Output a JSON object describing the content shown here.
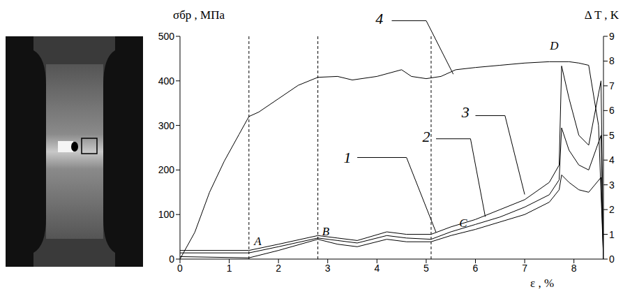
{
  "chart_data": {
    "type": "line",
    "x_label": "ε , %",
    "y_label": "σбр , МПа",
    "y2_label": "Δ T , K",
    "xlim": [
      0,
      8.6
    ],
    "xticks": [
      0,
      1,
      2,
      3,
      4,
      5,
      6,
      7,
      8
    ],
    "ylim": [
      0,
      500
    ],
    "yticks": [
      0,
      100,
      200,
      300,
      400,
      500
    ],
    "y2lim": [
      0,
      9
    ],
    "y2ticks": [
      0,
      1,
      2,
      3,
      4,
      5,
      6,
      7,
      8,
      9
    ],
    "vertical_lines": [
      1.4,
      2.8,
      5.1
    ],
    "series": [
      {
        "name": "4",
        "color": "#000000",
        "axis": "y",
        "x": [
          0,
          0.3,
          0.6,
          0.9,
          1.2,
          1.4,
          1.6,
          2.0,
          2.4,
          2.8,
          3.2,
          3.5,
          4.0,
          4.5,
          4.7,
          5.0,
          5.3,
          5.6,
          6.0,
          6.5,
          7.0,
          7.5,
          7.9,
          8.1,
          8.3,
          8.5,
          8.6
        ],
        "values": [
          0,
          60,
          150,
          220,
          280,
          320,
          330,
          360,
          390,
          408,
          410,
          402,
          410,
          425,
          410,
          405,
          410,
          425,
          430,
          435,
          440,
          443,
          443,
          440,
          435,
          300,
          0
        ]
      },
      {
        "name": "3",
        "color": "#000000",
        "axis": "y2",
        "x": [
          0,
          1.4,
          2.0,
          2.8,
          3.2,
          3.6,
          4.2,
          4.6,
          5.1,
          5.5,
          6.0,
          6.5,
          7.0,
          7.5,
          7.7,
          7.75,
          7.9,
          8.1,
          8.3,
          8.55,
          8.6
        ],
        "values": [
          0.35,
          0.35,
          0.6,
          0.95,
          0.85,
          0.75,
          1.1,
          1.0,
          1.0,
          1.3,
          1.6,
          2.0,
          2.4,
          3.1,
          3.8,
          7.8,
          6.5,
          5.0,
          4.6,
          7.2,
          0
        ]
      },
      {
        "name": "2",
        "color": "#000000",
        "axis": "y2",
        "x": [
          0,
          1.4,
          2.0,
          2.8,
          3.2,
          3.6,
          4.2,
          4.6,
          5.1,
          5.5,
          6.0,
          6.5,
          7.0,
          7.5,
          7.7,
          7.75,
          7.9,
          8.1,
          8.3,
          8.55,
          8.6
        ],
        "values": [
          0.25,
          0.25,
          0.5,
          0.85,
          0.75,
          0.65,
          0.95,
          0.85,
          0.8,
          1.1,
          1.4,
          1.7,
          2.1,
          2.6,
          3.2,
          5.3,
          4.4,
          3.8,
          3.6,
          5.0,
          0
        ]
      },
      {
        "name": "1",
        "color": "#000000",
        "axis": "y2",
        "x": [
          0,
          1.4,
          2.0,
          2.8,
          3.2,
          3.6,
          4.2,
          4.6,
          5.1,
          5.5,
          6.0,
          6.5,
          7.0,
          7.5,
          7.7,
          7.75,
          7.9,
          8.1,
          8.3,
          8.55,
          8.6
        ],
        "values": [
          0.1,
          0.05,
          0.35,
          0.8,
          0.6,
          0.5,
          0.8,
          0.7,
          0.7,
          0.95,
          1.2,
          1.5,
          1.8,
          2.3,
          2.8,
          3.4,
          3.1,
          2.8,
          2.7,
          3.3,
          0
        ]
      }
    ],
    "annotations": [
      {
        "text": "4",
        "x": 4.05,
        "y": 540,
        "leader": [
          [
            4.3,
            535
          ],
          [
            5.0,
            535
          ],
          [
            5.55,
            415
          ]
        ]
      },
      {
        "text": "1",
        "x": 3.4,
        "y": 228,
        "leader": [
          [
            3.6,
            228
          ],
          [
            4.6,
            228
          ],
          [
            5.2,
            60
          ]
        ]
      },
      {
        "text": "2",
        "x": 5.0,
        "y": 276,
        "leader": [
          [
            5.2,
            270
          ],
          [
            5.9,
            270
          ],
          [
            6.2,
            95
          ]
        ]
      },
      {
        "text": "3",
        "x": 5.8,
        "y": 330,
        "leader": [
          [
            6.0,
            322
          ],
          [
            6.6,
            322
          ],
          [
            7.0,
            145
          ]
        ]
      }
    ],
    "point_labels": [
      {
        "text": "A",
        "x": 1.58,
        "y": 41
      },
      {
        "text": "B",
        "x": 2.96,
        "y": 62
      },
      {
        "text": "C",
        "x": 5.75,
        "y": 82
      },
      {
        "text": "D",
        "x": 7.6,
        "y": 480
      }
    ]
  }
}
